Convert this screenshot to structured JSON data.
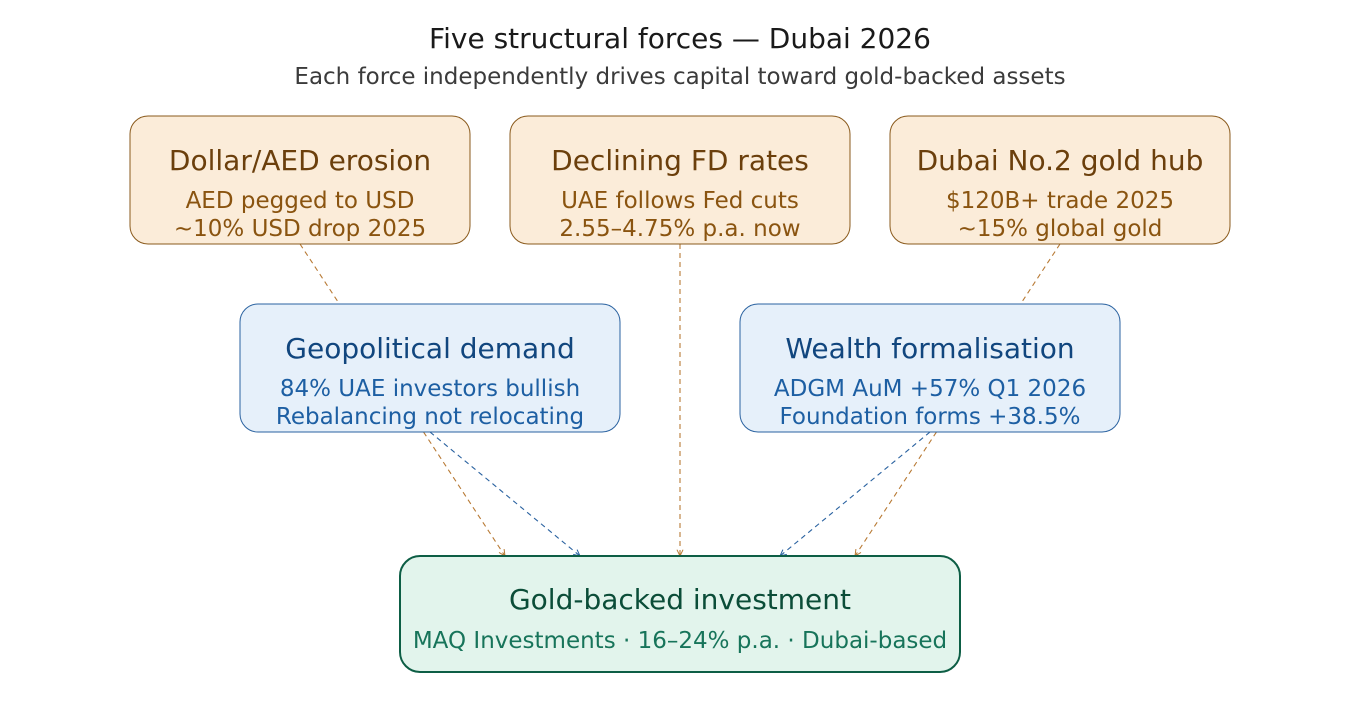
{
  "title": "Five structural forces — Dubai 2026",
  "subtitle": "Each force independently drives capital toward gold-backed assets",
  "colors": {
    "warm_fill": "#fbecd9",
    "warm_stroke": "#8a5a1c",
    "warm_title": "#6b3f0c",
    "warm_text": "#8a5410",
    "cool_fill": "#e6f0fa",
    "cool_stroke": "#2a62a0",
    "cool_title": "#11467e",
    "cool_text": "#1d5fa3",
    "target_fill": "#e2f4ec",
    "target_stroke": "#0d5e45",
    "target_title": "#0b4d38",
    "target_text": "#17745a",
    "warm_arrow": "#b87a35",
    "cool_arrow": "#2a62a0"
  },
  "forces": [
    {
      "id": "dollar",
      "group": "warm",
      "title": "Dollar/AED erosion",
      "lines": [
        "AED pegged to USD",
        "~10% USD drop 2025"
      ]
    },
    {
      "id": "fd",
      "group": "warm",
      "title": "Declining FD rates",
      "lines": [
        "UAE follows Fed cuts",
        "2.55–4.75% p.a. now"
      ]
    },
    {
      "id": "hub",
      "group": "warm",
      "title": "Dubai No.2 gold hub",
      "lines": [
        "$120B+ trade 2025",
        "~15% global gold"
      ]
    },
    {
      "id": "geo",
      "group": "cool",
      "title": "Geopolitical demand",
      "lines": [
        "84% UAE investors bullish",
        "Rebalancing not relocating"
      ]
    },
    {
      "id": "wealth",
      "group": "cool",
      "title": "Wealth formalisation",
      "lines": [
        "ADGM AuM +57% Q1 2026",
        "Foundation forms +38.5%"
      ]
    }
  ],
  "target": {
    "id": "gold",
    "group": "target",
    "title": "Gold-backed investment",
    "lines": [
      "MAQ Investments · 16–24% p.a. · Dubai-based"
    ]
  },
  "edges": [
    {
      "from": "dollar",
      "to": "gold",
      "group": "warm"
    },
    {
      "from": "fd",
      "to": "gold",
      "group": "warm"
    },
    {
      "from": "hub",
      "to": "gold",
      "group": "warm"
    },
    {
      "from": "geo",
      "to": "gold",
      "group": "cool"
    },
    {
      "from": "wealth",
      "to": "gold",
      "group": "cool"
    }
  ]
}
